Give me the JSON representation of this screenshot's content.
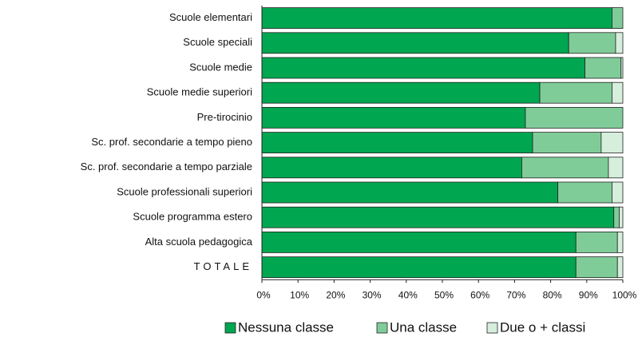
{
  "chart_data": {
    "type": "stacked_barh",
    "categories": [
      "Scuole elementari",
      "Scuole speciali",
      "Scuole medie",
      "Scuole medie superiori",
      "Pre-tirocinio",
      "Sc. prof. secondarie a tempo pieno",
      "Sc. prof. secondarie a tempo parziale",
      "Scuole professionali superiori",
      "Scuole programma estero",
      "Alta scuola pedagogica",
      "TOTALE"
    ],
    "series": [
      {
        "name": "Nessuna classe",
        "color": "#00a650",
        "values": [
          97,
          85,
          89.5,
          77,
          73,
          75,
          72,
          82,
          97.5,
          87,
          87
        ]
      },
      {
        "name": "Una classe",
        "color": "#80cc99",
        "values": [
          3,
          13,
          10,
          20,
          27,
          19,
          24,
          15,
          1.5,
          11.5,
          11.5
        ]
      },
      {
        "name": "Due o + classi",
        "color": "#d6eedc",
        "values": [
          0,
          2,
          0.5,
          3,
          0,
          6,
          4,
          3,
          1,
          1.5,
          1.5
        ]
      }
    ],
    "xlim": [
      0,
      100
    ],
    "xticks": [
      {
        "value": 0,
        "label": "0%"
      },
      {
        "value": 10,
        "label": "10%"
      },
      {
        "value": 20,
        "label": "20%"
      },
      {
        "value": 30,
        "label": "30%"
      },
      {
        "value": 40,
        "label": "40%"
      },
      {
        "value": 50,
        "label": "50%"
      },
      {
        "value": 60,
        "label": "60%"
      },
      {
        "value": 70,
        "label": "70%"
      },
      {
        "value": 80,
        "label": "80%"
      },
      {
        "value": 90,
        "label": "90%"
      },
      {
        "value": 100,
        "label": "100%"
      }
    ],
    "legend": "bottom"
  }
}
